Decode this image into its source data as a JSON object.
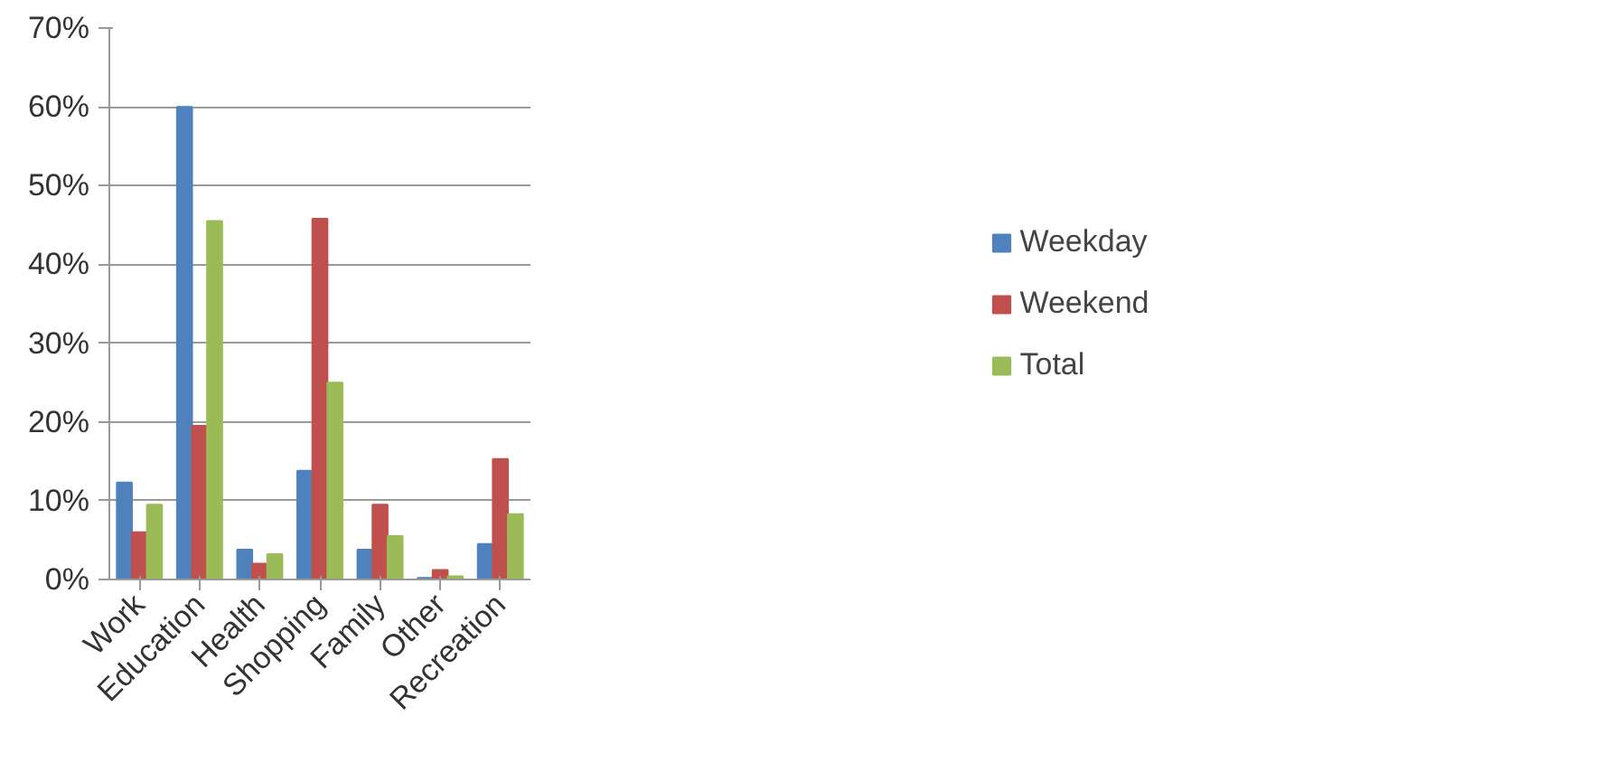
{
  "chart_data": {
    "type": "bar",
    "categories": [
      "Work",
      "Education",
      "Health",
      "Shopping",
      "Family",
      "Other",
      "Recreation"
    ],
    "series": [
      {
        "name": "Weekday",
        "color": "#4f81bd",
        "values": [
          12.3,
          60,
          3.8,
          13.8,
          3.8,
          0.2,
          4.5
        ]
      },
      {
        "name": "Weekend",
        "color": "#c0504d",
        "values": [
          6,
          19.5,
          2,
          45.8,
          9.5,
          1.2,
          15.3
        ]
      },
      {
        "name": "Total",
        "color": "#9bbb59",
        "values": [
          9.5,
          45.5,
          3.2,
          25,
          5.5,
          0.4,
          8.3
        ]
      }
    ],
    "ylim": [
      0,
      70
    ],
    "yticks": [
      {
        "value": 0,
        "label": "0%"
      },
      {
        "value": 10,
        "label": "10%"
      },
      {
        "value": 20,
        "label": "20%"
      },
      {
        "value": 30,
        "label": "30%"
      },
      {
        "value": 40,
        "label": "40%"
      },
      {
        "value": 50,
        "label": "50%"
      },
      {
        "value": 60,
        "label": "60%"
      },
      {
        "value": 70,
        "label": "70%"
      }
    ],
    "grid": "y",
    "legend": "right"
  }
}
